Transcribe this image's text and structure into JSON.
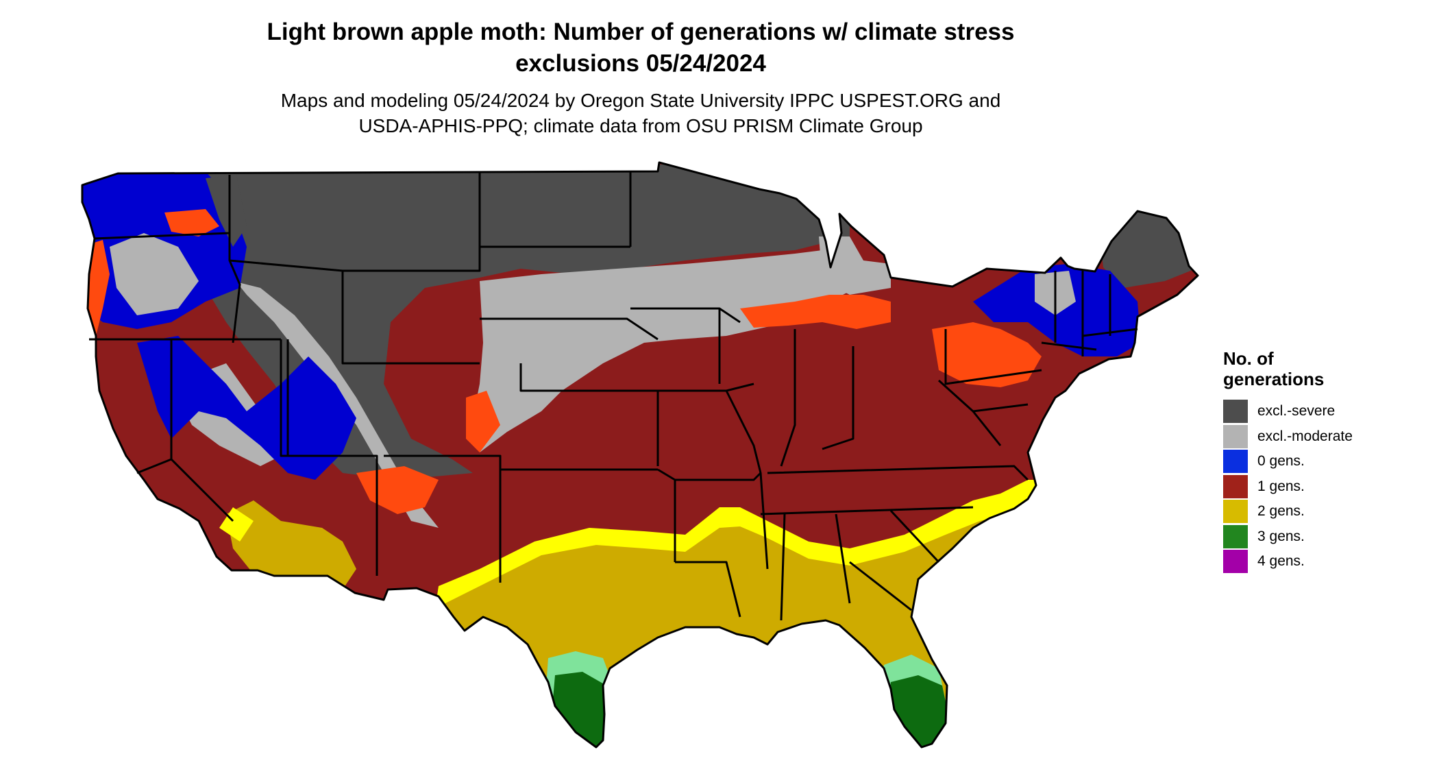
{
  "title_line1": "Light brown apple moth: Number of generations w/ climate stress",
  "title_line2": "exclusions 05/24/2024",
  "subtitle_line1": "Maps and modeling 05/24/2024 by Oregon State University IPPC USPEST.ORG and",
  "subtitle_line2": "USDA-APHIS-PPQ; climate data from OSU PRISM Climate Group",
  "legend": {
    "title_line1": "No. of",
    "title_line2": "generations",
    "items": [
      {
        "label": "excl.-severe",
        "color": "#4d4d4d"
      },
      {
        "label": "excl.-moderate",
        "color": "#b3b3b3"
      },
      {
        "label": "0 gens.",
        "color": "#0a2fe0"
      },
      {
        "label": "1 gens.",
        "color": "#a0221a"
      },
      {
        "label": "2 gens.",
        "color": "#d7bb00"
      },
      {
        "label": "3 gens.",
        "color": "#22861f"
      },
      {
        "label": "4 gens.",
        "color": "#a300a8"
      }
    ]
  },
  "map_colors": {
    "severe": "#4d4d4d",
    "moderate": "#b3b3b3",
    "zero": "#0000d0",
    "one": "#8c1c1c",
    "one_edge": "#ff4a0f",
    "two": "#ceab00",
    "two_edge": "#ffff00",
    "three": "#0d6b10",
    "three_edge": "#7fe39b",
    "border": "#000000"
  }
}
